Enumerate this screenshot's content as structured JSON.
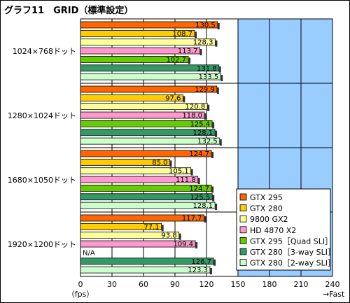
{
  "chart_data": {
    "type": "bar",
    "orientation": "horizontal",
    "title": "グラフ11　GRID（標準設定）",
    "xlabel_left": "（fps）",
    "xlabel_right": "→Fast",
    "xlim": [
      0,
      240
    ],
    "xticks": [
      0,
      30,
      60,
      90,
      120,
      150,
      180,
      210,
      240
    ],
    "grid": true,
    "legend_position": "bottom-right",
    "categories": [
      "1024×768ドット",
      "1280×1024ドット",
      "1680×1050ドット",
      "1920×1200ドット"
    ],
    "series": [
      {
        "name": "GTX 295",
        "color": "#ff6600",
        "values": [
          130.5,
          129.9,
          124.7,
          117.7
        ]
      },
      {
        "name": "GTX 280",
        "color": "#ffcc00",
        "values": [
          108.7,
          97.6,
          85.0,
          77.1
        ]
      },
      {
        "name": "9800 GX2",
        "color": "#ffff99",
        "values": [
          128.3,
          120.8,
          105.1,
          93.8
        ]
      },
      {
        "name": "HD 4870 X2",
        "color": "#ff99cc",
        "values": [
          113.7,
          118.0,
          111.8,
          109.4
        ]
      },
      {
        "name": "GTX 295［Quad SLI］",
        "color": "#66cc00",
        "values": [
          102.7,
          125.4,
          124.7,
          null
        ]
      },
      {
        "name": "GTX 280［3-way SLI］",
        "color": "#339966",
        "values": [
          131.8,
          128.1,
          125.5,
          126.7
        ]
      },
      {
        "name": "GTX 280［2-way SLI］",
        "color": "#ccffcc",
        "values": [
          133.5,
          132.5,
          128.1,
          123.3
        ]
      }
    ],
    "value_labels": [
      [
        "130.5",
        "108.7",
        "128.3",
        "113.7",
        "102.7",
        "131.8",
        "133.5"
      ],
      [
        "129.9",
        "97.6",
        "120.8",
        "118.0",
        "125.4",
        "128.1",
        "132.5"
      ],
      [
        "124.7",
        "85.0",
        "105.1",
        "111.8",
        "124.7",
        "125.5",
        "128.1"
      ],
      [
        "117.7",
        "77.1",
        "93.8",
        "109.4",
        "N/A",
        "126.7",
        "123.3"
      ]
    ],
    "colors": {
      "plot_background": "#99ccff",
      "left_band": "#ffffff",
      "gridline": "#000000"
    }
  }
}
